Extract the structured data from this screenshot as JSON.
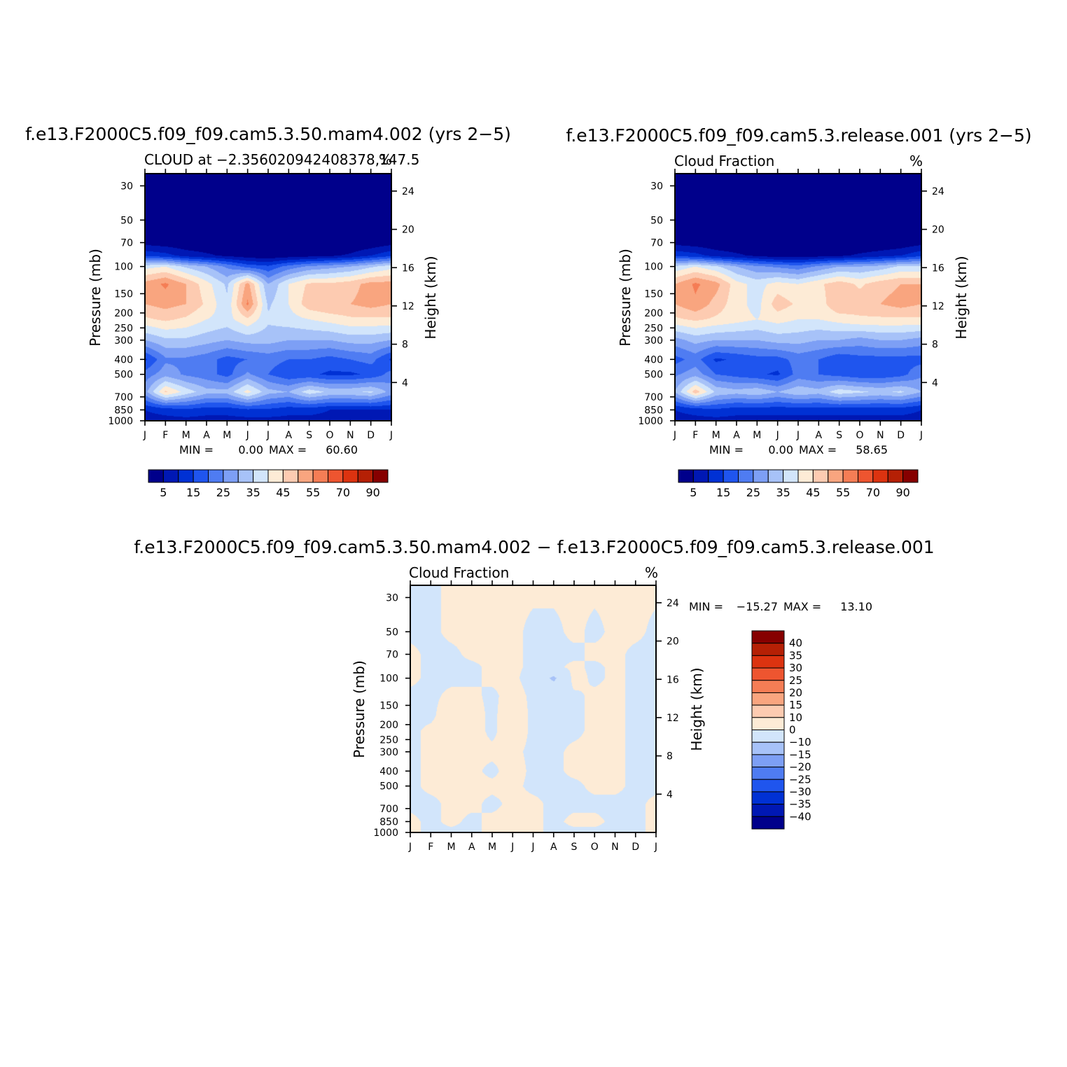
{
  "chart_data": [
    {
      "type": "heatmap",
      "title": "f.e13.F2000C5.f09_f09.cam5.3.50.mam4.002 (yrs 2−5)",
      "subtitle_left": "CLOUD at −2.356020942408378,147.5",
      "subtitle_right": "%",
      "ylabel_left": "Pressure (mb)",
      "ylabel_right": "Height (km)",
      "x_tick_labels": [
        "J",
        "F",
        "M",
        "A",
        "M",
        "J",
        "J",
        "A",
        "S",
        "O",
        "N",
        "D",
        "J"
      ],
      "y_ticks_pressure": [
        30,
        50,
        70,
        100,
        150,
        200,
        250,
        300,
        400,
        500,
        700,
        850,
        1000
      ],
      "y_ticks_height": [
        24,
        20,
        16,
        12,
        8,
        4
      ],
      "ylim_pressure": [
        1000,
        25
      ],
      "stats": {
        "min_label": "MIN =",
        "min": "0.00",
        "max_label": "MAX =",
        "max": "60.60"
      },
      "colorbar": {
        "orientation": "horizontal",
        "labels": [
          "5",
          "15",
          "25",
          "35",
          "45",
          "55",
          "70",
          "90"
        ],
        "colors": [
          "#00008b",
          "#0018b4",
          "#0031d4",
          "#1f55ee",
          "#4f7cf2",
          "#7d9ff5",
          "#a7c2f8",
          "#d2e5fb",
          "#fdebd6",
          "#fdcbb1",
          "#f9a57f",
          "#f57d55",
          "#ee5530",
          "#dc3310",
          "#b52005",
          "#860000"
        ]
      },
      "levels": [
        0,
        5,
        10,
        15,
        20,
        25,
        30,
        35,
        40,
        45,
        50,
        55,
        60,
        70,
        80,
        90,
        100
      ],
      "x_months": [
        0,
        1,
        2,
        3,
        4,
        5,
        6,
        7,
        8,
        9,
        10,
        11,
        12
      ],
      "y_pressure_levels": [
        25,
        50,
        70,
        85,
        100,
        130,
        175,
        220,
        300,
        400,
        500,
        650,
        850,
        1000
      ],
      "values": [
        [
          0,
          0,
          0,
          0,
          0,
          0,
          0,
          0,
          0,
          0,
          0,
          0,
          0
        ],
        [
          0,
          0,
          0,
          0,
          0,
          0,
          0,
          0,
          0,
          0,
          0,
          0,
          0
        ],
        [
          3,
          2,
          1,
          1,
          0,
          0,
          0,
          0,
          0,
          0,
          0,
          1,
          3
        ],
        [
          14,
          12,
          8,
          6,
          4,
          2,
          1,
          2,
          3,
          4,
          6,
          10,
          14
        ],
        [
          38,
          40,
          34,
          30,
          24,
          18,
          16,
          22,
          26,
          28,
          30,
          34,
          38
        ],
        [
          52,
          56,
          50,
          42,
          34,
          52,
          30,
          40,
          46,
          46,
          48,
          52,
          52
        ],
        [
          50,
          52,
          50,
          44,
          36,
          56,
          34,
          40,
          48,
          50,
          50,
          52,
          50
        ],
        [
          44,
          46,
          44,
          40,
          38,
          44,
          36,
          38,
          40,
          42,
          44,
          44,
          44
        ],
        [
          30,
          34,
          34,
          32,
          30,
          32,
          32,
          30,
          30,
          30,
          32,
          32,
          30
        ],
        [
          14,
          24,
          24,
          22,
          18,
          20,
          22,
          20,
          20,
          18,
          20,
          22,
          14
        ],
        [
          22,
          28,
          24,
          22,
          18,
          26,
          20,
          16,
          16,
          14,
          14,
          16,
          22
        ],
        [
          28,
          46,
          38,
          32,
          32,
          42,
          32,
          30,
          38,
          34,
          34,
          36,
          28
        ],
        [
          10,
          12,
          14,
          12,
          12,
          14,
          14,
          12,
          12,
          10,
          10,
          10,
          10
        ],
        [
          8,
          8,
          8,
          8,
          8,
          8,
          8,
          8,
          8,
          8,
          8,
          8,
          8
        ]
      ]
    },
    {
      "type": "heatmap",
      "title": "f.e13.F2000C5.f09_f09.cam5.3.release.001 (yrs 2−5)",
      "subtitle_left": "Cloud Fraction",
      "subtitle_right": "%",
      "ylabel_left": "Pressure (mb)",
      "ylabel_right": "Height (km)",
      "x_tick_labels": [
        "J",
        "F",
        "M",
        "A",
        "M",
        "J",
        "J",
        "A",
        "S",
        "O",
        "N",
        "D",
        "J"
      ],
      "y_ticks_pressure": [
        30,
        50,
        70,
        100,
        150,
        200,
        250,
        300,
        400,
        500,
        700,
        850,
        1000
      ],
      "y_ticks_height": [
        24,
        20,
        16,
        12,
        8,
        4
      ],
      "ylim_pressure": [
        1000,
        25
      ],
      "stats": {
        "min_label": "MIN =",
        "min": "0.00",
        "max_label": "MAX =",
        "max": "58.65"
      },
      "colorbar": {
        "orientation": "horizontal",
        "labels": [
          "5",
          "15",
          "25",
          "35",
          "45",
          "55",
          "70",
          "90"
        ],
        "colors": [
          "#00008b",
          "#0018b4",
          "#0031d4",
          "#1f55ee",
          "#4f7cf2",
          "#7d9ff5",
          "#a7c2f8",
          "#d2e5fb",
          "#fdebd6",
          "#fdcbb1",
          "#f9a57f",
          "#f57d55",
          "#ee5530",
          "#dc3310",
          "#b52005",
          "#860000"
        ]
      },
      "levels": [
        0,
        5,
        10,
        15,
        20,
        25,
        30,
        35,
        40,
        45,
        50,
        55,
        60,
        70,
        80,
        90,
        100
      ],
      "x_months": [
        0,
        1,
        2,
        3,
        4,
        5,
        6,
        7,
        8,
        9,
        10,
        11,
        12
      ],
      "y_pressure_levels": [
        25,
        50,
        70,
        85,
        100,
        130,
        175,
        220,
        300,
        400,
        500,
        650,
        850,
        1000
      ],
      "values": [
        [
          0,
          0,
          0,
          0,
          0,
          0,
          0,
          0,
          0,
          0,
          0,
          0,
          0
        ],
        [
          0,
          0,
          0,
          0,
          0,
          0,
          0,
          0,
          0,
          0,
          0,
          0,
          0
        ],
        [
          3,
          2,
          1,
          1,
          0,
          0,
          0,
          0,
          0,
          0,
          0,
          1,
          3
        ],
        [
          14,
          12,
          8,
          6,
          4,
          2,
          2,
          3,
          4,
          6,
          8,
          10,
          14
        ],
        [
          36,
          40,
          36,
          30,
          26,
          24,
          22,
          26,
          30,
          30,
          32,
          36,
          36
        ],
        [
          50,
          56,
          52,
          42,
          38,
          42,
          40,
          44,
          48,
          44,
          48,
          50,
          50
        ],
        [
          50,
          54,
          48,
          42,
          38,
          48,
          44,
          42,
          50,
          48,
          50,
          52,
          50
        ],
        [
          44,
          46,
          44,
          42,
          40,
          42,
          40,
          40,
          42,
          44,
          44,
          44,
          44
        ],
        [
          28,
          32,
          30,
          30,
          30,
          32,
          32,
          30,
          30,
          28,
          30,
          30,
          28
        ],
        [
          18,
          22,
          14,
          16,
          18,
          18,
          22,
          20,
          16,
          18,
          18,
          18,
          18
        ],
        [
          24,
          28,
          20,
          18,
          16,
          14,
          22,
          20,
          18,
          16,
          16,
          18,
          24
        ],
        [
          30,
          48,
          34,
          32,
          34,
          30,
          34,
          32,
          38,
          36,
          34,
          36,
          30
        ],
        [
          10,
          12,
          14,
          12,
          12,
          12,
          12,
          12,
          12,
          12,
          12,
          12,
          10
        ],
        [
          8,
          8,
          8,
          8,
          8,
          8,
          8,
          8,
          8,
          8,
          8,
          8,
          8
        ]
      ]
    },
    {
      "type": "heatmap",
      "title": "f.e13.F2000C5.f09_f09.cam5.3.50.mam4.002 − f.e13.F2000C5.f09_f09.cam5.3.release.001",
      "subtitle_left": "Cloud Fraction",
      "subtitle_right": "%",
      "ylabel_left": "Pressure (mb)",
      "ylabel_right": "Height (km)",
      "x_tick_labels": [
        "J",
        "F",
        "M",
        "A",
        "M",
        "J",
        "J",
        "A",
        "S",
        "O",
        "N",
        "D",
        "J"
      ],
      "y_ticks_pressure": [
        30,
        50,
        70,
        100,
        150,
        200,
        250,
        300,
        400,
        500,
        700,
        850,
        1000
      ],
      "y_ticks_height": [
        24,
        20,
        16,
        12,
        8,
        4
      ],
      "ylim_pressure": [
        1000,
        25
      ],
      "stats": {
        "min_label": "MIN =",
        "min": "−15.27",
        "max_label": "MAX =",
        "max": "13.10"
      },
      "colorbar": {
        "orientation": "vertical",
        "labels": [
          "40",
          "35",
          "30",
          "25",
          "20",
          "15",
          "10",
          "0",
          "−10",
          "−15",
          "−20",
          "−25",
          "−30",
          "−35",
          "−40"
        ],
        "colors": [
          "#860000",
          "#b52005",
          "#dc3310",
          "#ee5530",
          "#f57d55",
          "#f9a57f",
          "#fdcbb1",
          "#fdebd6",
          "#d2e5fb",
          "#a7c2f8",
          "#7d9ff5",
          "#4f7cf2",
          "#1f55ee",
          "#0031d4",
          "#0018b4",
          "#00008b"
        ]
      },
      "levels": [
        -100,
        -40,
        -35,
        -30,
        -25,
        -20,
        -15,
        -10,
        0,
        10,
        15,
        20,
        25,
        30,
        35,
        40,
        100
      ],
      "x_months": [
        0,
        1,
        2,
        3,
        4,
        5,
        6,
        7,
        8,
        9,
        10,
        11,
        12
      ],
      "y_pressure_levels": [
        25,
        50,
        70,
        85,
        100,
        130,
        175,
        220,
        300,
        400,
        500,
        650,
        850,
        1000
      ],
      "values": [
        [
          -1,
          -1,
          1,
          1,
          1,
          1,
          1,
          1,
          1,
          1,
          1,
          1,
          1
        ],
        [
          -1,
          -1,
          1,
          1,
          1,
          1,
          -1,
          -1,
          1,
          -1,
          1,
          1,
          -1
        ],
        [
          1,
          -1,
          -1,
          1,
          1,
          1,
          -1,
          -1,
          -1,
          1,
          1,
          -1,
          -1
        ],
        [
          1,
          -1,
          -1,
          -1,
          1,
          1,
          -1,
          -1,
          1,
          -1,
          1,
          -1,
          -1
        ],
        [
          1,
          -1,
          -1,
          -1,
          1,
          1,
          -2,
          -12,
          2,
          -1,
          1,
          -1,
          -1
        ],
        [
          -1,
          -1,
          1,
          1,
          -1,
          2,
          -1,
          -1,
          -1,
          1,
          1,
          -1,
          -1
        ],
        [
          -1,
          -1,
          3,
          2,
          -1,
          3,
          -1,
          -1,
          -1,
          1,
          1,
          -1,
          -1
        ],
        [
          -1,
          1,
          3,
          2,
          -1,
          3,
          -1,
          -1,
          -1,
          1,
          1,
          -1,
          -1
        ],
        [
          -1,
          1,
          2,
          1,
          1,
          1,
          -1,
          -1,
          1,
          1,
          1,
          -1,
          -1
        ],
        [
          -1,
          1,
          2,
          1,
          -1,
          2,
          -1,
          -1,
          1,
          1,
          1,
          -1,
          -1
        ],
        [
          -1,
          1,
          1,
          1,
          1,
          1,
          -1,
          -1,
          -1,
          1,
          1,
          -1,
          -1
        ],
        [
          -1,
          -1,
          1,
          1,
          -1,
          1,
          1,
          -1,
          -1,
          -1,
          -1,
          -1,
          1
        ],
        [
          1,
          -1,
          1,
          -1,
          1,
          1,
          1,
          -1,
          1,
          1,
          -1,
          -1,
          1
        ],
        [
          1,
          -1,
          -1,
          -1,
          1,
          1,
          1,
          -1,
          -1,
          -1,
          -1,
          -1,
          1
        ]
      ]
    }
  ]
}
